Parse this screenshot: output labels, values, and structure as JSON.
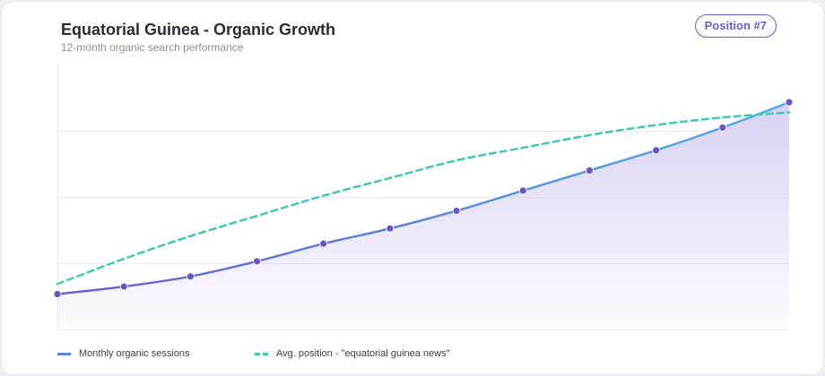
{
  "header": {
    "title": "Equatorial Guinea - Organic Growth",
    "subtitle": "12-month organic search performance",
    "badge": "Position #7"
  },
  "colors": {
    "sessions_start": "#6c5fc7",
    "sessions_end": "#4fb0e8",
    "sessions_point": "#6a55c6",
    "area_fill": "#d6cff0",
    "position": "#3fc9b4",
    "grid": "#e9eaee"
  },
  "chart_data": {
    "type": "line",
    "title": "Equatorial Guinea - Organic Growth",
    "subtitle": "12-month organic search performance",
    "x": [
      1,
      2,
      3,
      4,
      5,
      6,
      7,
      8,
      9,
      10,
      11,
      12
    ],
    "grid": true,
    "legend_position": "bottom-left",
    "series": [
      {
        "name": "Monthly organic sessions",
        "style": "solid",
        "markers": true,
        "area_fill": true,
        "axis": "left",
        "values": [
          0.14,
          0.17,
          0.21,
          0.27,
          0.34,
          0.4,
          0.47,
          0.55,
          0.63,
          0.71,
          0.8,
          0.9
        ],
        "ylim": [
          0,
          1.05
        ]
      },
      {
        "name": "Avg. position - \"equatorial guinea news\"",
        "style": "dashed",
        "markers": false,
        "area_fill": false,
        "axis": "right",
        "values": [
          0.18,
          0.28,
          0.37,
          0.45,
          0.53,
          0.6,
          0.67,
          0.72,
          0.77,
          0.81,
          0.84,
          0.86
        ],
        "ylim": [
          0,
          1.05
        ]
      }
    ]
  }
}
